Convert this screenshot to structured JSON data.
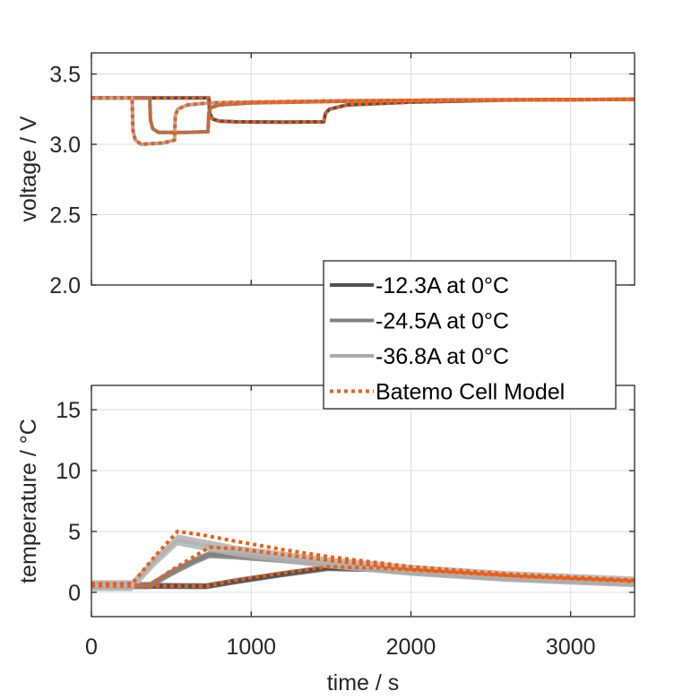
{
  "chart_data": [
    {
      "type": "line",
      "panel": "top",
      "title": "",
      "xlabel": "",
      "ylabel": "voltage / V",
      "xlim": [
        0,
        3400
      ],
      "ylim": [
        2.0,
        3.65
      ],
      "xticks": [
        0,
        1000,
        2000,
        3000
      ],
      "yticks": [
        2.0,
        2.5,
        3.0,
        3.5
      ],
      "ytick_labels": [
        "2.0",
        "2.5",
        "3.0",
        "3.5"
      ],
      "grid": true,
      "series": [
        {
          "name": "-12.3A at 0°C",
          "style": "measured",
          "color": "#505050",
          "x": [
            0,
            735,
            740,
            760,
            800,
            900,
            1200,
            1455,
            1465,
            1490,
            1600,
            2000,
            2600,
            3400
          ],
          "y": [
            3.33,
            3.33,
            3.22,
            3.18,
            3.165,
            3.16,
            3.158,
            3.16,
            3.22,
            3.25,
            3.28,
            3.3,
            3.315,
            3.32
          ]
        },
        {
          "name": "-24.5A at 0°C",
          "style": "measured",
          "color": "#808080",
          "x": [
            0,
            365,
            370,
            385,
            420,
            600,
            730,
            735,
            745,
            800,
            1000,
            1500,
            2200,
            3400
          ],
          "y": [
            3.33,
            3.33,
            3.17,
            3.11,
            3.085,
            3.085,
            3.09,
            3.22,
            3.26,
            3.28,
            3.295,
            3.305,
            3.315,
            3.32
          ]
        },
        {
          "name": "-36.8A at 0°C",
          "style": "measured",
          "color": "#aaaaaa",
          "x": [
            0,
            255,
            260,
            275,
            310,
            450,
            520,
            525,
            540,
            600,
            740,
            1000,
            1600,
            2400,
            3400
          ],
          "y": [
            3.33,
            3.33,
            3.1,
            3.03,
            3.0,
            3.01,
            3.03,
            3.2,
            3.25,
            3.28,
            3.295,
            3.3,
            3.31,
            3.315,
            3.32
          ]
        },
        {
          "name": "Batemo Cell Model",
          "style": "model",
          "color": "#ee5d14",
          "runs": [
            {
              "x": [
                0,
                735,
                740,
                760,
                800,
                900,
                1200,
                1455,
                1465,
                1490,
                1600,
                2000,
                2600,
                3400
              ],
              "y": [
                3.33,
                3.33,
                3.22,
                3.18,
                3.165,
                3.16,
                3.158,
                3.16,
                3.22,
                3.25,
                3.28,
                3.3,
                3.315,
                3.32
              ]
            },
            {
              "x": [
                0,
                365,
                370,
                385,
                420,
                600,
                730,
                735,
                745,
                800,
                1000,
                1500,
                2200,
                3400
              ],
              "y": [
                3.33,
                3.33,
                3.17,
                3.11,
                3.085,
                3.085,
                3.09,
                3.22,
                3.26,
                3.28,
                3.295,
                3.305,
                3.315,
                3.32
              ]
            },
            {
              "x": [
                0,
                255,
                260,
                275,
                310,
                450,
                520,
                525,
                540,
                600,
                740,
                1000,
                1600,
                2400,
                3400
              ],
              "y": [
                3.33,
                3.33,
                3.1,
                3.03,
                3.0,
                3.01,
                3.03,
                3.2,
                3.25,
                3.28,
                3.295,
                3.3,
                3.31,
                3.315,
                3.32
              ]
            }
          ]
        }
      ]
    },
    {
      "type": "line",
      "panel": "bottom",
      "title": "",
      "xlabel": "time / s",
      "ylabel": "temperature / °C",
      "xlim": [
        0,
        3400
      ],
      "ylim": [
        -2,
        17
      ],
      "xticks": [
        0,
        1000,
        2000,
        3000
      ],
      "xtick_labels": [
        "0",
        "1000",
        "2000",
        "3000"
      ],
      "yticks": [
        0,
        5,
        10,
        15
      ],
      "ytick_labels": [
        "0",
        "5",
        "10",
        "15"
      ],
      "grid": true,
      "series": [
        {
          "name": "-12.3A at 0°C",
          "style": "measured",
          "color": "#505050",
          "x": [
            0,
            720,
            900,
            1200,
            1480,
            1800,
            2200,
            2700,
            3400
          ],
          "y": [
            0.55,
            0.5,
            0.9,
            1.5,
            2.0,
            1.9,
            1.6,
            1.2,
            0.8
          ],
          "band": 0.25
        },
        {
          "name": "-24.5A at 0°C",
          "style": "measured",
          "color": "#808080",
          "x": [
            0,
            365,
            500,
            650,
            740,
            900,
            1200,
            1500,
            2000,
            2600,
            3400
          ],
          "y": [
            0.55,
            0.55,
            1.6,
            2.6,
            3.1,
            3.0,
            2.7,
            2.3,
            1.7,
            1.2,
            0.8
          ],
          "band": 0.3
        },
        {
          "name": "-36.8A at 0°C",
          "style": "measured",
          "color": "#b3b3b3",
          "x": [
            0,
            255,
            400,
            540,
            700,
            900,
            1200,
            1500,
            2000,
            2600,
            3400
          ],
          "y": [
            0.55,
            0.55,
            2.6,
            4.3,
            3.9,
            3.4,
            2.9,
            2.4,
            1.8,
            1.3,
            0.85
          ],
          "band": 0.45
        },
        {
          "name": "Batemo Cell Model",
          "style": "model",
          "color": "#ee5d14",
          "runs": [
            {
              "x": [
                0,
                720,
                900,
                1200,
                1480,
                1800,
                2200,
                2700,
                3400
              ],
              "y": [
                0.55,
                0.5,
                1.0,
                1.6,
                2.1,
                2.0,
                1.7,
                1.3,
                0.9
              ]
            },
            {
              "x": [
                0,
                365,
                500,
                650,
                740,
                900,
                1200,
                1500,
                2000,
                2600,
                3400
              ],
              "y": [
                0.6,
                0.6,
                1.8,
                3.0,
                3.7,
                3.6,
                3.1,
                2.6,
                1.9,
                1.4,
                0.95
              ]
            },
            {
              "x": [
                0,
                255,
                400,
                540,
                700,
                900,
                1200,
                1500,
                2000,
                2600,
                3400
              ],
              "y": [
                0.7,
                0.7,
                3.0,
                5.0,
                4.7,
                4.2,
                3.5,
                2.9,
                2.1,
                1.5,
                1.0
              ]
            }
          ]
        }
      ]
    }
  ],
  "legend": {
    "placement": "overlapping bottom-right of top panel",
    "entries": [
      {
        "label": "-12.3A at 0°C",
        "color": "#505050",
        "style": "solid"
      },
      {
        "label": "-24.5A at 0°C",
        "color": "#808080",
        "style": "solid"
      },
      {
        "label": "-36.8A at 0°C",
        "color": "#aaaaaa",
        "style": "solid"
      },
      {
        "label": "Batemo Cell Model",
        "color": "#ee5d14",
        "style": "dotted"
      }
    ]
  }
}
